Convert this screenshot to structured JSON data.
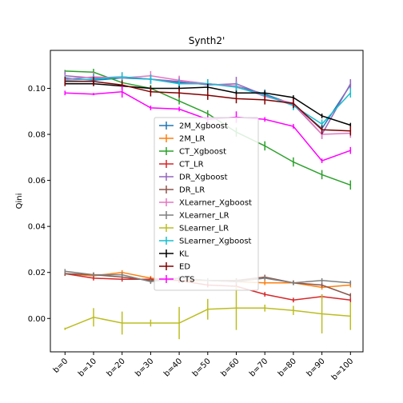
{
  "chart_data": {
    "type": "line",
    "title": "Synth2'",
    "xlabel": "",
    "ylabel": "Qini",
    "categories": [
      "b=0",
      "b=10",
      "b=20",
      "b=30",
      "b=40",
      "b=50",
      "b=60",
      "b=70",
      "b=80",
      "b=90",
      "b=100"
    ],
    "ylim": [
      -0.0145,
      0.1165
    ],
    "yticks": [
      "0.00",
      "0.02",
      "0.04",
      "0.06",
      "0.08",
      "0.10"
    ],
    "ytick_values": [
      0.0,
      0.02,
      0.04,
      0.06,
      0.08,
      0.1
    ],
    "legend_position": "center",
    "grid": false,
    "series": [
      {
        "name": "2M_Xgboost",
        "color": "#1f77b4",
        "values": [
          0.1045,
          0.1035,
          0.1045,
          0.104,
          0.1025,
          0.102,
          0.101,
          0.0975,
          0.093,
          0.0825,
          0.1015
        ],
        "errors": [
          0.002,
          0.002,
          0.002,
          0.002,
          0.002,
          0.002,
          0.002,
          0.002,
          0.002,
          0.002,
          0.002
        ]
      },
      {
        "name": "2M_LR",
        "color": "#ff7f0e",
        "values": [
          0.0195,
          0.0185,
          0.02,
          0.0175,
          0.0165,
          0.0165,
          0.016,
          0.0155,
          0.0155,
          0.0135,
          0.0145
        ],
        "errors": [
          0.001,
          0.001,
          0.001,
          0.001,
          0.001,
          0.001,
          0.001,
          0.001,
          0.001,
          0.001,
          0.001
        ]
      },
      {
        "name": "CT_Xgboost",
        "color": "#2ca02c",
        "values": [
          0.1075,
          0.107,
          0.1025,
          0.1,
          0.0945,
          0.089,
          0.081,
          0.075,
          0.068,
          0.0625,
          0.058
        ],
        "errors": [
          0.0005,
          0.0015,
          0.0015,
          0.0015,
          0.0015,
          0.0015,
          0.002,
          0.002,
          0.002,
          0.002,
          0.002
        ]
      },
      {
        "name": "CT_LR",
        "color": "#d62728",
        "values": [
          0.0195,
          0.0175,
          0.017,
          0.017,
          0.0165,
          0.0145,
          0.014,
          0.0105,
          0.008,
          0.0095,
          0.008
        ],
        "errors": [
          0.001,
          0.001,
          0.001,
          0.001,
          0.001,
          0.001,
          0.001,
          0.001,
          0.001,
          0.001,
          0.001
        ]
      },
      {
        "name": "DR_Xgboost",
        "color": "#9467bd",
        "values": [
          0.1055,
          0.1045,
          0.105,
          0.104,
          0.103,
          0.1015,
          0.102,
          0.097,
          0.093,
          0.08,
          0.102
        ],
        "errors": [
          0.002,
          0.002,
          0.002,
          0.002,
          0.002,
          0.002,
          0.003,
          0.002,
          0.002,
          0.002,
          0.002
        ]
      },
      {
        "name": "DR_LR",
        "color": "#8c564b",
        "values": [
          0.0195,
          0.019,
          0.018,
          0.0165,
          0.0175,
          0.0165,
          0.0165,
          0.018,
          0.0155,
          0.0145,
          0.01
        ],
        "errors": [
          0.001,
          0.001,
          0.001,
          0.001,
          0.001,
          0.001,
          0.001,
          0.001,
          0.001,
          0.001,
          0.001
        ]
      },
      {
        "name": "XLearner_Xgboost",
        "color": "#e377c2",
        "values": [
          0.104,
          0.105,
          0.1045,
          0.1055,
          0.1035,
          0.102,
          0.101,
          0.0965,
          0.0935,
          0.08,
          0.0805
        ],
        "errors": [
          0.002,
          0.002,
          0.002,
          0.002,
          0.002,
          0.002,
          0.002,
          0.002,
          0.002,
          0.002,
          0.002
        ]
      },
      {
        "name": "XLearner_LR",
        "color": "#7f7f7f",
        "values": [
          0.0205,
          0.019,
          0.019,
          0.016,
          0.0175,
          0.0165,
          0.016,
          0.0175,
          0.0155,
          0.0165,
          0.0155
        ],
        "errors": [
          0.001,
          0.001,
          0.001,
          0.001,
          0.001,
          0.001,
          0.001,
          0.001,
          0.001,
          0.001,
          0.001
        ]
      },
      {
        "name": "SLearner_LR",
        "color": "#bcbd22",
        "values": [
          -0.0045,
          0.0005,
          -0.002,
          -0.002,
          -0.002,
          0.004,
          0.0045,
          0.0045,
          0.0035,
          0.002,
          0.001
        ],
        "errors": [
          0.0005,
          0.004,
          0.005,
          0.0015,
          0.007,
          0.0045,
          0.0095,
          0.0015,
          0.002,
          0.0085,
          0.006
        ]
      },
      {
        "name": "SLearner_Xgboost",
        "color": "#17becf",
        "values": [
          0.1035,
          0.104,
          0.105,
          0.104,
          0.102,
          0.102,
          0.1005,
          0.097,
          0.0925,
          0.0845,
          0.098
        ],
        "errors": [
          0.002,
          0.002,
          0.002,
          0.002,
          0.002,
          0.002,
          0.002,
          0.002,
          0.002,
          0.002,
          0.002
        ]
      },
      {
        "name": "KL",
        "color": "#000000",
        "values": [
          0.102,
          0.102,
          0.101,
          0.1,
          0.1,
          0.1005,
          0.098,
          0.098,
          0.096,
          0.088,
          0.084
        ],
        "errors": [
          0.001,
          0.001,
          0.001,
          0.001,
          0.001,
          0.0015,
          0.001,
          0.001,
          0.001,
          0.001,
          0.001
        ]
      },
      {
        "name": "ED",
        "color": "#800000",
        "values": [
          0.103,
          0.103,
          0.1015,
          0.0985,
          0.098,
          0.097,
          0.0955,
          0.095,
          0.0935,
          0.082,
          0.0815
        ],
        "errors": [
          0.002,
          0.002,
          0.002,
          0.002,
          0.002,
          0.002,
          0.002,
          0.002,
          0.002,
          0.002,
          0.002
        ]
      },
      {
        "name": "CTS",
        "color": "#ff00ff",
        "values": [
          0.098,
          0.0975,
          0.0985,
          0.0915,
          0.091,
          0.0865,
          0.0875,
          0.0865,
          0.0835,
          0.0685,
          0.073
        ],
        "errors": [
          0.001,
          0.0005,
          0.0025,
          0.001,
          0.001,
          0.0015,
          0.0025,
          0.001,
          0.001,
          0.001,
          0.0015
        ]
      }
    ]
  }
}
